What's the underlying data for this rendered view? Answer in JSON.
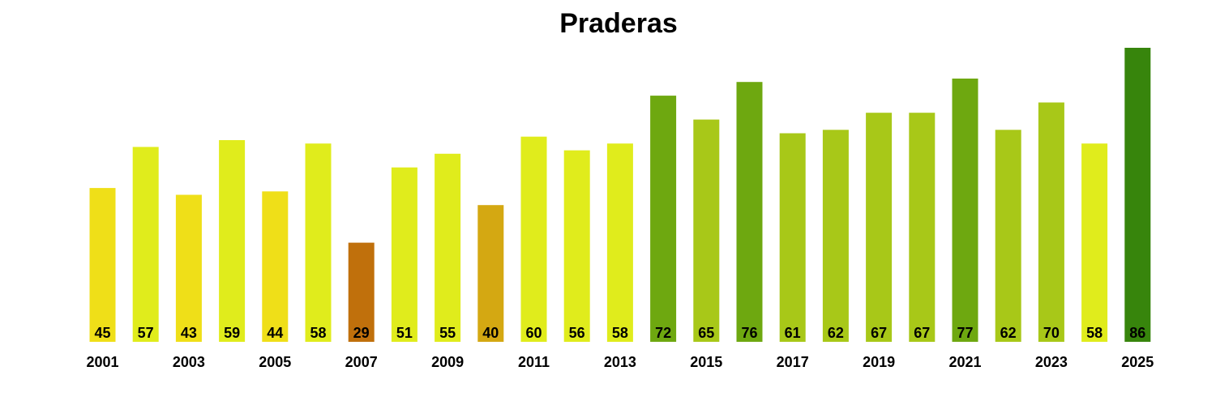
{
  "chart_data": {
    "type": "bar",
    "title": "Praderas",
    "xlabel": "",
    "ylabel": "",
    "categories": [
      "2001",
      "2002",
      "2003",
      "2004",
      "2005",
      "2006",
      "2007",
      "2008",
      "2009",
      "2010",
      "2011",
      "2012",
      "2013",
      "2014",
      "2015",
      "2016",
      "2017",
      "2018",
      "2019",
      "2020",
      "2021",
      "2022",
      "2023",
      "2024",
      "2025"
    ],
    "values": [
      45,
      57,
      43,
      59,
      44,
      58,
      29,
      51,
      55,
      40,
      60,
      56,
      58,
      72,
      65,
      76,
      61,
      62,
      67,
      67,
      77,
      62,
      70,
      58,
      86
    ],
    "colors": [
      "#efdf18",
      "#e0ec1c",
      "#efdf18",
      "#e0ec1c",
      "#efdf18",
      "#e0ec1c",
      "#c0700c",
      "#e0ec1c",
      "#e0ec1c",
      "#d4a812",
      "#e0ec1c",
      "#e0ec1c",
      "#e0ec1c",
      "#6ea810",
      "#a8c818",
      "#6ea810",
      "#a8c818",
      "#a8c818",
      "#a8c818",
      "#a8c818",
      "#6ea810",
      "#a8c818",
      "#a8c818",
      "#e0ec1c",
      "#37850c"
    ],
    "tick_labels": [
      "2001",
      "2003",
      "2005",
      "2007",
      "2009",
      "2011",
      "2013",
      "2015",
      "2017",
      "2019",
      "2021",
      "2023",
      "2025"
    ],
    "ylim": [
      0,
      86
    ],
    "grid": false,
    "legend": "none"
  }
}
